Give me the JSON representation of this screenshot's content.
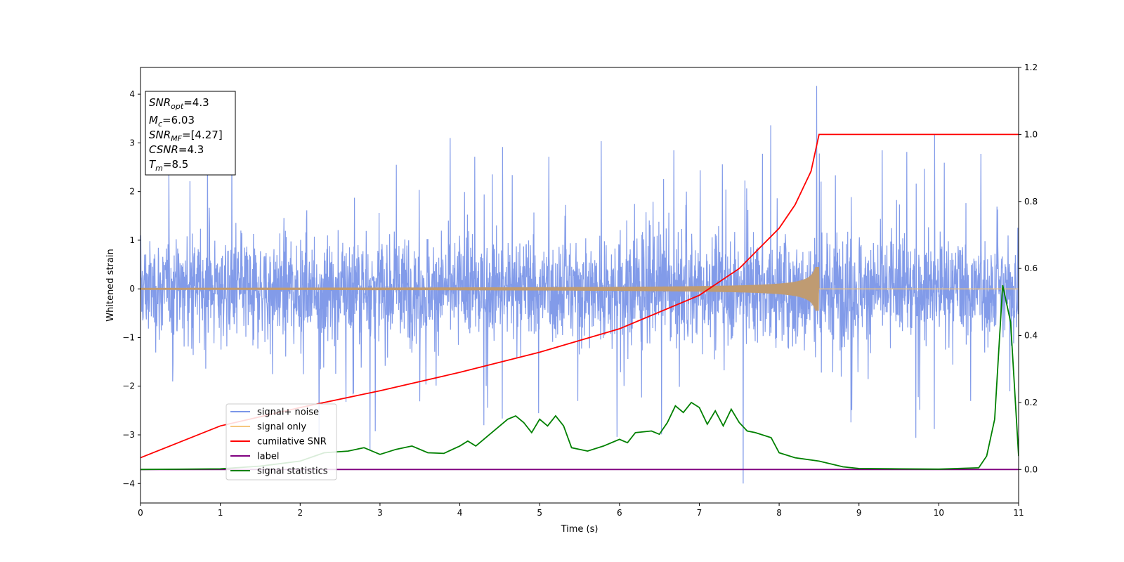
{
  "chart_data": {
    "type": "line",
    "xlabel": "Time (s)",
    "ylabel": "Whitened strain",
    "xlim": [
      0,
      11
    ],
    "ylim": [
      -4.4,
      4.55
    ],
    "y2lim": [
      -0.1,
      1.2
    ],
    "xticks": [
      "0",
      "1",
      "2",
      "3",
      "4",
      "5",
      "6",
      "7",
      "8",
      "9",
      "10",
      "11"
    ],
    "yticks": [
      "−4",
      "−3",
      "−2",
      "−1",
      "0",
      "1",
      "2",
      "3",
      "4"
    ],
    "y2ticks": [
      "0.0",
      "0.2",
      "0.4",
      "0.6",
      "0.8",
      "1.0",
      "1.2"
    ],
    "grid": false,
    "legend_position": "lower-left",
    "info_box": {
      "lines": [
        {
          "main": "SNR",
          "sub": "opt",
          "rest": "=4.3"
        },
        {
          "main": "M",
          "sub": "c",
          "rest": "=6.03"
        },
        {
          "main": "SNR",
          "sub": "MF",
          "rest": "=[4.27]"
        },
        {
          "main": "CSNR",
          "sub": "",
          "rest": "=4.3"
        },
        {
          "main": "T",
          "sub": "m",
          "rest": "=8.5"
        }
      ]
    },
    "series": [
      {
        "name": "signal+ noise",
        "color": "#7b96e8",
        "axis": "left",
        "kind": "noise",
        "envelope": 1.6,
        "peak_x": 8.47,
        "peak_y": 4.17,
        "min_x": 7.55,
        "min_y": -4.0
      },
      {
        "name": "signal only",
        "color": "#f5c77e",
        "axis": "left",
        "kind": "chirp",
        "t_merge": 8.5,
        "max_amplitude": 0.45
      },
      {
        "name": "cumilative SNR",
        "color": "#ff0000",
        "axis": "right",
        "x": [
          0,
          1,
          2,
          3,
          4,
          5,
          6,
          7,
          7.5,
          8,
          8.2,
          8.4,
          8.5,
          8.52,
          11
        ],
        "values": [
          0.035,
          0.13,
          0.185,
          0.235,
          0.29,
          0.35,
          0.42,
          0.52,
          0.6,
          0.72,
          0.79,
          0.89,
          1.0,
          1.0,
          1.0
        ]
      },
      {
        "name": "label",
        "color": "#800080",
        "axis": "right",
        "x": [
          0,
          11
        ],
        "values": [
          0.0,
          0.0
        ]
      },
      {
        "name": "signal statistics",
        "color": "#008000",
        "axis": "right",
        "x": [
          0,
          1,
          1.5,
          2,
          2.3,
          2.6,
          2.8,
          3.0,
          3.2,
          3.4,
          3.6,
          3.8,
          4.0,
          4.1,
          4.2,
          4.3,
          4.45,
          4.6,
          4.7,
          4.8,
          4.9,
          5.0,
          5.1,
          5.2,
          5.3,
          5.4,
          5.6,
          5.8,
          6.0,
          6.1,
          6.2,
          6.4,
          6.5,
          6.6,
          6.7,
          6.8,
          6.9,
          7.0,
          7.1,
          7.2,
          7.3,
          7.4,
          7.5,
          7.6,
          7.7,
          7.9,
          8.0,
          8.2,
          8.5,
          8.8,
          9.0,
          9.5,
          10.0,
          10.5,
          10.6,
          10.7,
          10.8,
          10.9,
          11.0
        ],
        "values": [
          0.0,
          0.002,
          0.01,
          0.025,
          0.05,
          0.055,
          0.065,
          0.045,
          0.06,
          0.07,
          0.05,
          0.048,
          0.07,
          0.085,
          0.07,
          0.09,
          0.12,
          0.15,
          0.16,
          0.14,
          0.11,
          0.15,
          0.13,
          0.16,
          0.13,
          0.065,
          0.055,
          0.07,
          0.09,
          0.08,
          0.11,
          0.115,
          0.105,
          0.14,
          0.19,
          0.17,
          0.2,
          0.185,
          0.135,
          0.175,
          0.13,
          0.18,
          0.14,
          0.115,
          0.11,
          0.095,
          0.05,
          0.035,
          0.025,
          0.008,
          0.003,
          0.002,
          0.001,
          0.005,
          0.04,
          0.15,
          0.55,
          0.44,
          0.04
        ]
      }
    ]
  }
}
